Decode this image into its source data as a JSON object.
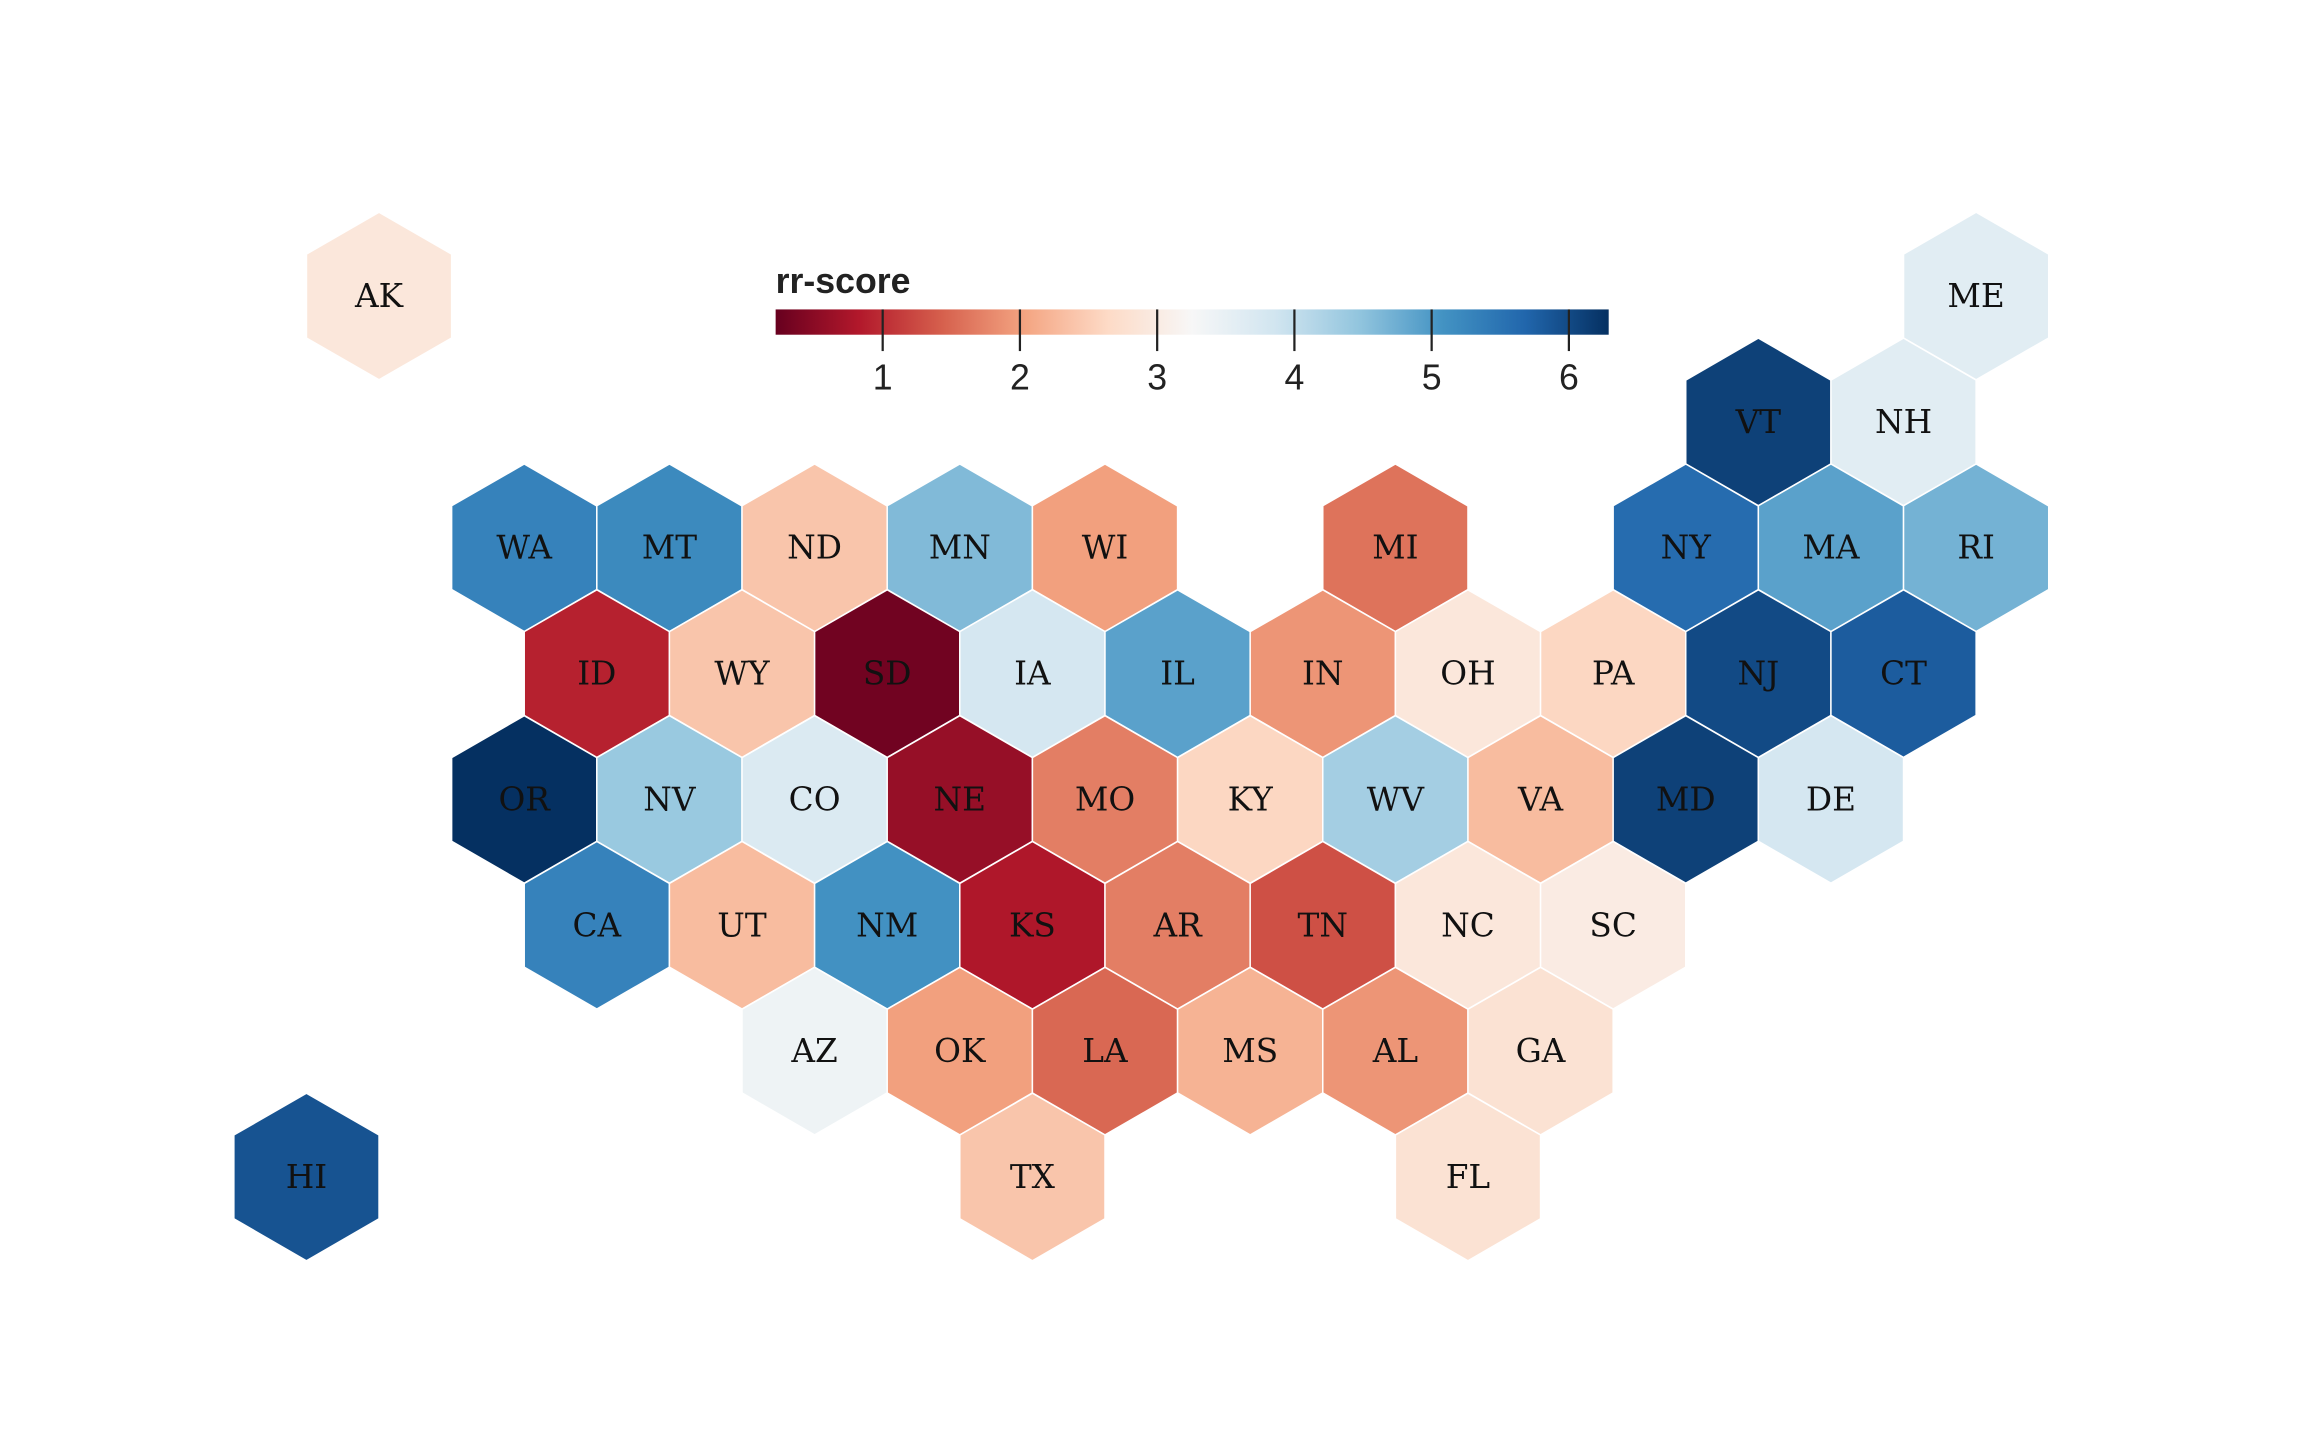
{
  "chart_data": {
    "type": "heatmap",
    "subtype": "hexbin-tile-map",
    "legend": {
      "title": "rr-score",
      "ticks": [
        "1",
        "2",
        "3",
        "4",
        "5",
        "6"
      ],
      "domain": [
        0.22,
        6.29
      ],
      "placement": "top-center"
    },
    "colorscale": [
      "#67001f",
      "#b2182b",
      "#d6604d",
      "#f4a582",
      "#fddbc7",
      "#f7f7f7",
      "#d1e5f0",
      "#92c5de",
      "#4393c3",
      "#2166ac",
      "#053061"
    ],
    "states": [
      {
        "abbr": "AK",
        "row": 0,
        "col": -2,
        "value": 2.9
      },
      {
        "abbr": "ME",
        "row": 0,
        "col": 20,
        "value": 3.6
      },
      {
        "abbr": "VT",
        "row": 1,
        "col": 17,
        "value": 6.1
      },
      {
        "abbr": "NH",
        "row": 1,
        "col": 19,
        "value": 3.6
      },
      {
        "abbr": "WA",
        "row": 2,
        "col": 0,
        "value": 5.3
      },
      {
        "abbr": "MT",
        "row": 2,
        "col": 2,
        "value": 5.2
      },
      {
        "abbr": "ND",
        "row": 2,
        "col": 4,
        "value": 2.4
      },
      {
        "abbr": "MN",
        "row": 2,
        "col": 6,
        "value": 4.6
      },
      {
        "abbr": "WI",
        "row": 2,
        "col": 8,
        "value": 2.0
      },
      {
        "abbr": "MI",
        "row": 2,
        "col": 12,
        "value": 1.6
      },
      {
        "abbr": "NY",
        "row": 2,
        "col": 16,
        "value": 5.6
      },
      {
        "abbr": "MA",
        "row": 2,
        "col": 18,
        "value": 4.9
      },
      {
        "abbr": "RI",
        "row": 2,
        "col": 20,
        "value": 4.7
      },
      {
        "abbr": "ID",
        "row": 3,
        "col": 1,
        "value": 0.9
      },
      {
        "abbr": "WY",
        "row": 3,
        "col": 3,
        "value": 2.4
      },
      {
        "abbr": "SD",
        "row": 3,
        "col": 5,
        "value": 0.3
      },
      {
        "abbr": "IA",
        "row": 3,
        "col": 7,
        "value": 3.8
      },
      {
        "abbr": "IL",
        "row": 3,
        "col": 9,
        "value": 4.9
      },
      {
        "abbr": "IN",
        "row": 3,
        "col": 11,
        "value": 1.9
      },
      {
        "abbr": "OH",
        "row": 3,
        "col": 13,
        "value": 2.9
      },
      {
        "abbr": "PA",
        "row": 3,
        "col": 15,
        "value": 2.6
      },
      {
        "abbr": "NJ",
        "row": 3,
        "col": 17,
        "value": 6.0
      },
      {
        "abbr": "CT",
        "row": 3,
        "col": 19,
        "value": 5.8
      },
      {
        "abbr": "OR",
        "row": 4,
        "col": 0,
        "value": 6.3
      },
      {
        "abbr": "NV",
        "row": 4,
        "col": 2,
        "value": 4.4
      },
      {
        "abbr": "CO",
        "row": 4,
        "col": 4,
        "value": 3.7
      },
      {
        "abbr": "NE",
        "row": 4,
        "col": 6,
        "value": 0.6
      },
      {
        "abbr": "MO",
        "row": 4,
        "col": 8,
        "value": 1.7
      },
      {
        "abbr": "KY",
        "row": 4,
        "col": 10,
        "value": 2.6
      },
      {
        "abbr": "WV",
        "row": 4,
        "col": 12,
        "value": 4.3
      },
      {
        "abbr": "VA",
        "row": 4,
        "col": 14,
        "value": 2.3
      },
      {
        "abbr": "MD",
        "row": 4,
        "col": 16,
        "value": 6.1
      },
      {
        "abbr": "DE",
        "row": 4,
        "col": 18,
        "value": 3.8
      },
      {
        "abbr": "CA",
        "row": 5,
        "col": 1,
        "value": 5.3
      },
      {
        "abbr": "UT",
        "row": 5,
        "col": 3,
        "value": 2.3
      },
      {
        "abbr": "NM",
        "row": 5,
        "col": 5,
        "value": 5.1
      },
      {
        "abbr": "KS",
        "row": 5,
        "col": 7,
        "value": 0.8
      },
      {
        "abbr": "AR",
        "row": 5,
        "col": 9,
        "value": 1.7
      },
      {
        "abbr": "TN",
        "row": 5,
        "col": 11,
        "value": 1.3
      },
      {
        "abbr": "NC",
        "row": 5,
        "col": 13,
        "value": 2.9
      },
      {
        "abbr": "SC",
        "row": 5,
        "col": 15,
        "value": 3.0
      },
      {
        "abbr": "AZ",
        "row": 6,
        "col": 4,
        "value": 3.4
      },
      {
        "abbr": "OK",
        "row": 6,
        "col": 6,
        "value": 2.0
      },
      {
        "abbr": "LA",
        "row": 6,
        "col": 8,
        "value": 1.5
      },
      {
        "abbr": "MS",
        "row": 6,
        "col": 10,
        "value": 2.2
      },
      {
        "abbr": "AL",
        "row": 6,
        "col": 12,
        "value": 1.9
      },
      {
        "abbr": "GA",
        "row": 6,
        "col": 14,
        "value": 2.8
      },
      {
        "abbr": "HI",
        "row": 7,
        "col": -3,
        "value": 5.9
      },
      {
        "abbr": "TX",
        "row": 7,
        "col": 7,
        "value": 2.4
      },
      {
        "abbr": "FL",
        "row": 7,
        "col": 13,
        "value": 2.8
      }
    ]
  }
}
